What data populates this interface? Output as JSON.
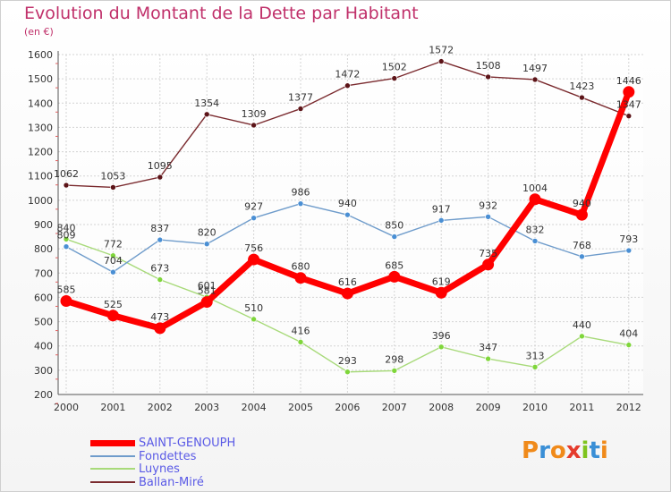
{
  "title": "Evolution du Montant de la Dette par Habitant",
  "subtitle": "(en €)",
  "logo_text": "Proxiti",
  "chart_data": {
    "type": "line",
    "title": "Evolution du Montant de la Dette par Habitant",
    "subtitle": "(en €)",
    "x": [
      "2000",
      "2001",
      "2002",
      "2003",
      "2004",
      "2005",
      "2006",
      "2007",
      "2008",
      "2009",
      "2010",
      "2011",
      "2012"
    ],
    "ylim": [
      200,
      1600
    ],
    "yticks": [
      200,
      300,
      400,
      500,
      600,
      700,
      800,
      900,
      1000,
      1100,
      1200,
      1300,
      1400,
      1500,
      1600
    ],
    "grid": true,
    "legend_position": "bottom-left",
    "series": [
      {
        "name": "SAINT-GENOUPH",
        "color": "#ff0000",
        "point_color": "#ff0000",
        "values": [
          585,
          525,
          473,
          581,
          756,
          680,
          616,
          685,
          619,
          735,
          1004,
          940,
          1446
        ],
        "labels": [
          "585",
          "525",
          "473",
          "581",
          "756",
          "680",
          "616",
          "685",
          "619",
          "735",
          "1004",
          "940",
          "1446"
        ]
      },
      {
        "name": "Fondettes",
        "color": "#6f9ccb",
        "point_color": "#4a8fd4",
        "values": [
          809,
          704,
          837,
          820,
          927,
          986,
          940,
          850,
          917,
          932,
          832,
          768,
          793
        ],
        "labels": [
          "809",
          "704",
          "837",
          "820",
          "927",
          "986",
          "940",
          "850",
          "917",
          "932",
          "832",
          "768",
          "793"
        ]
      },
      {
        "name": "Luynes",
        "color": "#a8da7a",
        "point_color": "#7fd63b",
        "values": [
          840,
          772,
          673,
          601,
          510,
          416,
          293,
          298,
          396,
          347,
          313,
          440,
          404
        ],
        "labels": [
          "840",
          "772",
          "673",
          "601",
          "510",
          "416",
          "293",
          "298",
          "396",
          "347",
          "313",
          "440",
          "404"
        ]
      },
      {
        "name": "Ballan-Miré",
        "color": "#7a2a2e",
        "point_color": "#5c1418",
        "values": [
          1062,
          1053,
          1095,
          1354,
          1309,
          1377,
          1472,
          1502,
          1572,
          1508,
          1497,
          1423,
          1347
        ],
        "labels": [
          "1062",
          "1053",
          "1095",
          "1354",
          "1309",
          "1377",
          "1472",
          "1502",
          "1572",
          "1508",
          "1497",
          "1423",
          "1347"
        ]
      }
    ]
  }
}
